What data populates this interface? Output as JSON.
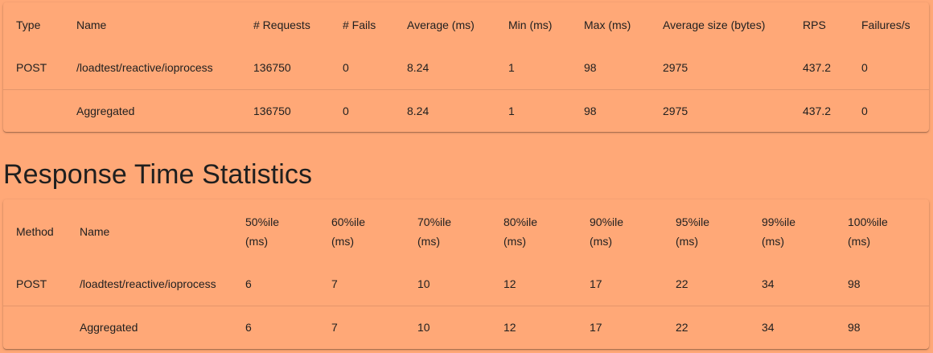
{
  "request_stats": {
    "headers": [
      "Type",
      "Name",
      "# Requests",
      "# Fails",
      "Average (ms)",
      "Min (ms)",
      "Max (ms)",
      "Average size (bytes)",
      "RPS",
      "Failures/s"
    ],
    "rows": [
      [
        "POST",
        "/loadtest/reactive/ioprocess",
        "136750",
        "0",
        "8.24",
        "1",
        "98",
        "2975",
        "437.2",
        "0"
      ],
      [
        "",
        "Aggregated",
        "136750",
        "0",
        "8.24",
        "1",
        "98",
        "2975",
        "437.2",
        "0"
      ]
    ]
  },
  "response_time": {
    "title": "Response Time Statistics",
    "headers": [
      [
        "Method"
      ],
      [
        "Name"
      ],
      [
        "50%ile",
        "(ms)"
      ],
      [
        "60%ile",
        "(ms)"
      ],
      [
        "70%ile",
        "(ms)"
      ],
      [
        "80%ile",
        "(ms)"
      ],
      [
        "90%ile",
        "(ms)"
      ],
      [
        "95%ile",
        "(ms)"
      ],
      [
        "99%ile",
        "(ms)"
      ],
      [
        "100%ile",
        "(ms)"
      ]
    ],
    "rows": [
      [
        "POST",
        "/loadtest/reactive/ioprocess",
        "6",
        "7",
        "10",
        "12",
        "17",
        "22",
        "34",
        "98"
      ],
      [
        "",
        "Aggregated",
        "6",
        "7",
        "10",
        "12",
        "17",
        "22",
        "34",
        "98"
      ]
    ]
  },
  "colors": {
    "background": "#ffa877",
    "divider": "#e4956b",
    "text": "#1f1f1f"
  }
}
